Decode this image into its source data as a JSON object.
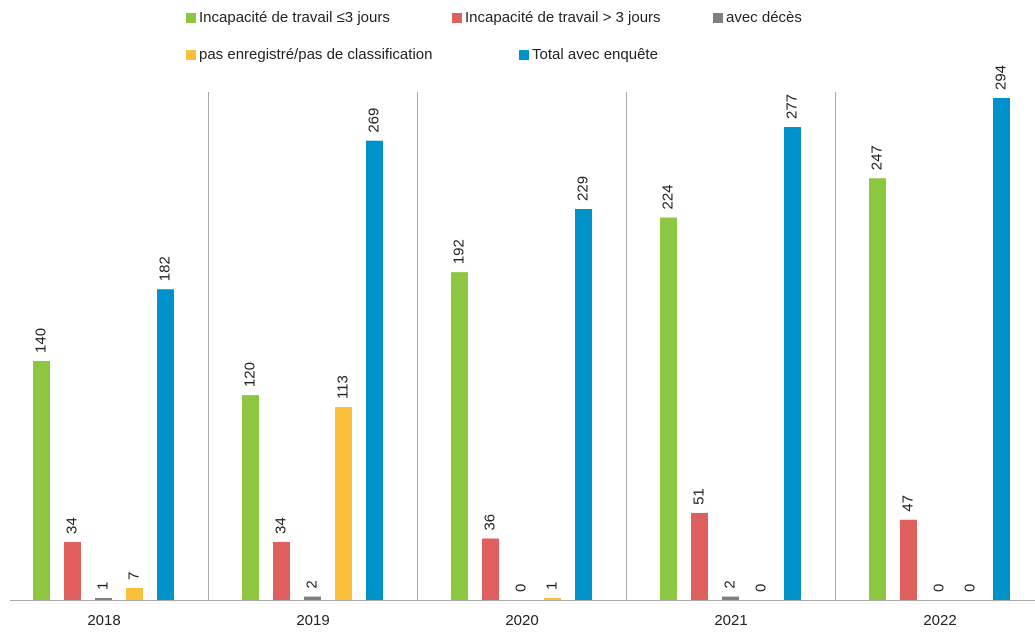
{
  "chart_data": {
    "type": "bar",
    "categories": [
      "2018",
      "2019",
      "2020",
      "2021",
      "2022"
    ],
    "series": [
      {
        "name": "Incapacité de travail ≤3 jours",
        "color": "#8dc63f",
        "values": [
          140,
          120,
          192,
          224,
          247
        ]
      },
      {
        "name": "Incapacité de travail > 3 jours",
        "color": "#e06060",
        "values": [
          34,
          34,
          36,
          51,
          47
        ]
      },
      {
        "name": "avec décès",
        "color": "#808080",
        "values": [
          1,
          2,
          0,
          2,
          0
        ]
      },
      {
        "name": "pas enregistré/pas de classification",
        "color": "#fbbf3a",
        "values": [
          7,
          113,
          1,
          0,
          0
        ]
      },
      {
        "name": "Total avec enquête",
        "color": "#0093c9",
        "values": [
          182,
          269,
          229,
          277,
          294
        ]
      }
    ]
  }
}
